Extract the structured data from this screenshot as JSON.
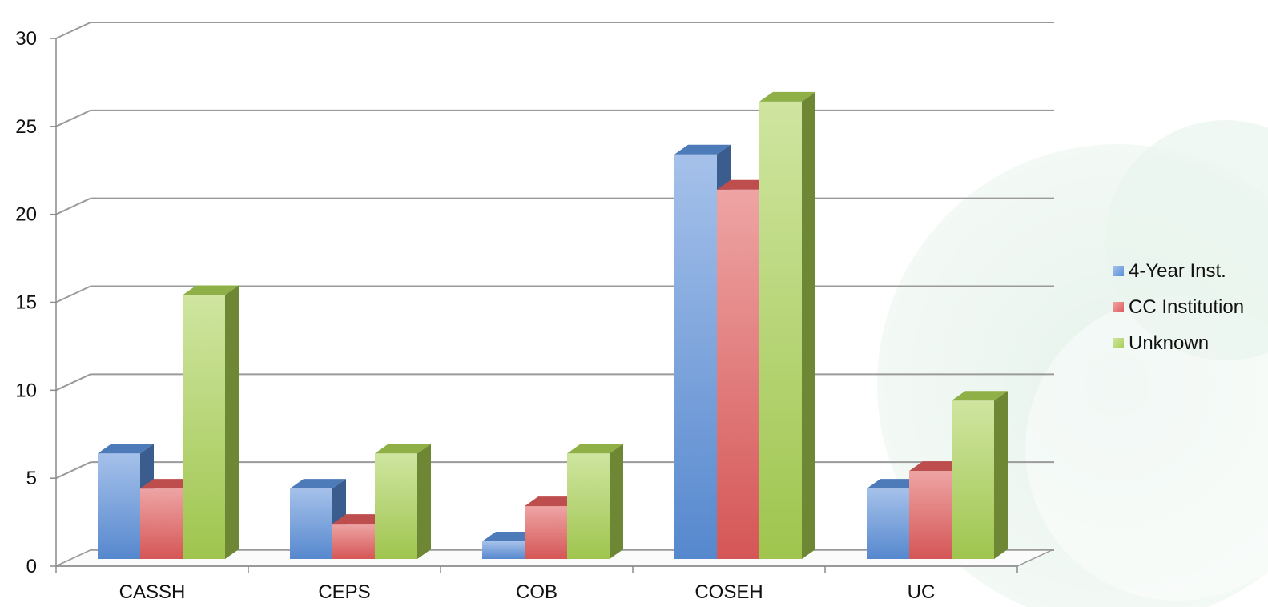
{
  "chart_data": {
    "type": "bar",
    "title": "",
    "xlabel": "",
    "ylabel": "",
    "categories": [
      "CASSH",
      "CEPS",
      "COB",
      "COSEH",
      "UC"
    ],
    "series": [
      {
        "name": "4-Year Inst.",
        "color": "#5b8fd9",
        "values": [
          6,
          4,
          1,
          23,
          4
        ]
      },
      {
        "name": "CC Institution",
        "color": "#e05a5a",
        "values": [
          4,
          2,
          3,
          21,
          5
        ]
      },
      {
        "name": "Unknown",
        "color": "#a7cf52",
        "values": [
          15,
          6,
          6,
          26,
          9
        ]
      }
    ],
    "ylim": [
      0,
      30
    ],
    "yticks": [
      "0",
      "5",
      "10",
      "15",
      "20",
      "25",
      "30"
    ],
    "grid": true,
    "legend_position": "right",
    "style": "3d-clustered-column"
  }
}
